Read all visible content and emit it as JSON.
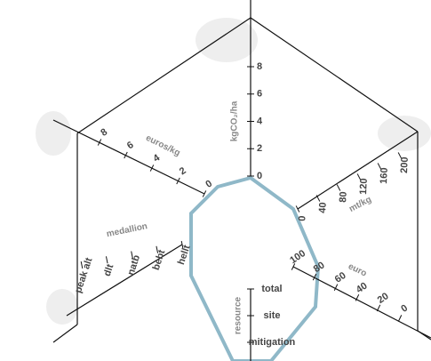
{
  "axes": [
    {
      "label": "kgCO₂/ha",
      "ticks": [
        "0",
        "2",
        "4",
        "6",
        "8"
      ]
    },
    {
      "label": "mt/kg",
      "ticks": [
        "0",
        "40",
        "80",
        "120",
        "160",
        "200"
      ]
    },
    {
      "label": "euro",
      "ticks": [
        "100",
        "80",
        "60",
        "40",
        "20",
        "0"
      ]
    },
    {
      "label": "euros/kg",
      "ticks": [
        "0",
        "2",
        "4",
        "6",
        "8"
      ]
    },
    {
      "label": "medallion",
      "ticks": [
        "hellt",
        "bebt",
        "natb",
        "dlt",
        "peak alt"
      ]
    },
    {
      "label": "resource",
      "ticks": [
        "total",
        "site",
        "mitigation"
      ]
    }
  ]
}
